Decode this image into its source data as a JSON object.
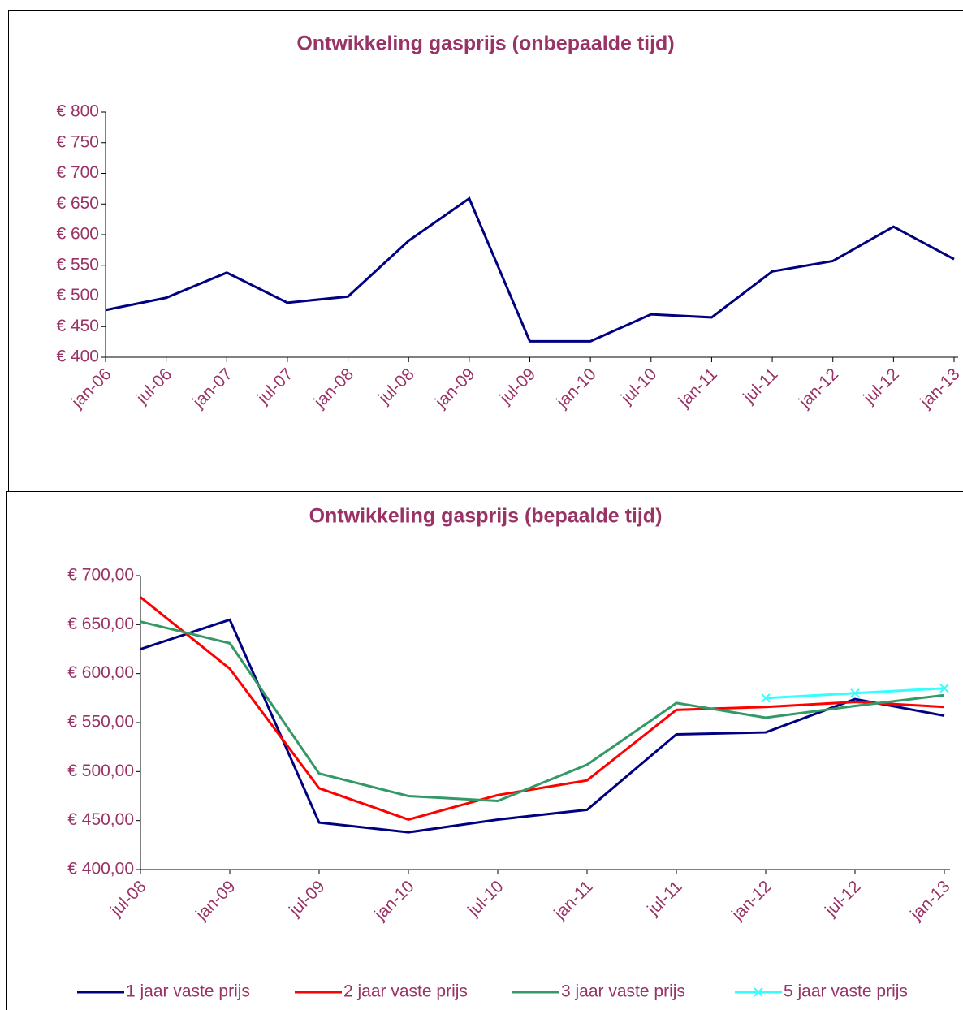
{
  "chart_data": [
    {
      "type": "line",
      "title": "Ontwikkeling gasprijs (onbepaalde tijd)",
      "categories": [
        "jan-06",
        "jul-06",
        "jan-07",
        "jul-07",
        "jan-08",
        "jul-08",
        "jan-09",
        "jul-09",
        "jan-10",
        "jul-10",
        "jan-11",
        "jul-11",
        "jan-12",
        "jul-12",
        "jan-13"
      ],
      "values": [
        477,
        497,
        538,
        489,
        499,
        590,
        659,
        426,
        426,
        470,
        465,
        540,
        557,
        613,
        560
      ],
      "color": "#000080",
      "ylim": [
        400,
        800
      ],
      "yticks": [
        {
          "value": 400,
          "label": "€ 400"
        },
        {
          "value": 450,
          "label": "€ 450"
        },
        {
          "value": 500,
          "label": "€ 500"
        },
        {
          "value": 550,
          "label": "€ 550"
        },
        {
          "value": 600,
          "label": "€ 600"
        },
        {
          "value": 650,
          "label": "€ 650"
        },
        {
          "value": 700,
          "label": "€ 700"
        },
        {
          "value": 750,
          "label": "€ 750"
        },
        {
          "value": 800,
          "label": "€ 800"
        }
      ]
    },
    {
      "type": "line",
      "title": "Ontwikkeling gasprijs (bepaalde tijd)",
      "categories": [
        "jul-08",
        "jan-09",
        "jul-09",
        "jan-10",
        "jul-10",
        "jan-11",
        "jul-11",
        "jan-12",
        "jul-12",
        "jan-13"
      ],
      "series": [
        {
          "name": "1 jaar vaste prijs",
          "color": "#000080",
          "values": [
            625,
            655,
            448,
            438,
            451,
            461,
            538,
            540,
            574,
            557
          ]
        },
        {
          "name": "2 jaar vaste prijs",
          "color": "#ff0000",
          "values": [
            678,
            605,
            483,
            451,
            476,
            491,
            563,
            566,
            571,
            566
          ]
        },
        {
          "name": "3 jaar vaste prijs",
          "color": "#339966",
          "values": [
            653,
            631,
            498,
            475,
            470,
            507,
            570,
            555,
            567,
            578
          ]
        },
        {
          "name": "5 jaar vaste prijs",
          "color": "#33ffff",
          "marker": "x",
          "values": [
            null,
            null,
            null,
            null,
            null,
            null,
            null,
            575,
            580,
            585
          ]
        }
      ],
      "ylim": [
        400,
        700
      ],
      "yticks": [
        {
          "value": 400,
          "label": "€ 400,00"
        },
        {
          "value": 450,
          "label": "€ 450,00"
        },
        {
          "value": 500,
          "label": "€ 500,00"
        },
        {
          "value": 550,
          "label": "€ 550,00"
        },
        {
          "value": 600,
          "label": "€ 600,00"
        },
        {
          "value": 650,
          "label": "€ 650,00"
        },
        {
          "value": 700,
          "label": "€ 700,00"
        }
      ],
      "legend": "bottom"
    }
  ]
}
